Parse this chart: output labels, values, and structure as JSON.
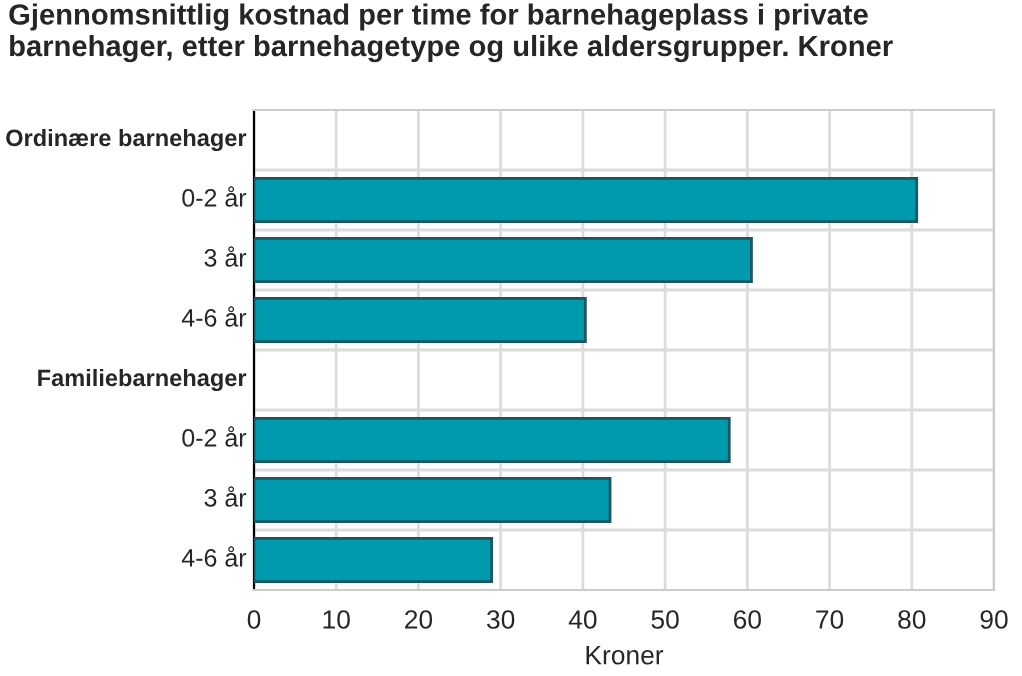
{
  "chart_data": {
    "type": "bar",
    "orientation": "horizontal",
    "title": "Gjennomsnittlig kostnad per time for barnehageplass i private barnehager, etter barnehagetype og ulike aldersgrupper. Kroner",
    "xlabel": "Kroner",
    "categories": [
      "Ordinære barnehager",
      "0-2 år",
      "3 år",
      "4-6 år",
      "Familiebarnehager",
      "0-2 år",
      "3 år",
      "4-6 år"
    ],
    "series": [
      {
        "color": "#009aaf",
        "values": [
          null,
          80.6,
          60.5,
          40.3,
          null,
          57.8,
          43.3,
          28.9
        ]
      }
    ],
    "xlim": [
      0,
      90
    ],
    "xticks": [
      0,
      10,
      20,
      30,
      40,
      50,
      60,
      70,
      80,
      90
    ],
    "grid": true,
    "legend": false
  }
}
